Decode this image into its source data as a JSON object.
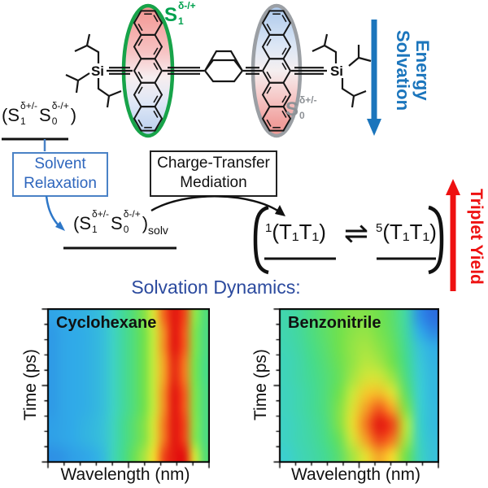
{
  "scheme": {
    "si_left": "Si",
    "si_right": "Si",
    "s1_ellipse": {
      "base": "S",
      "sub": "1",
      "sup": "δ-/+"
    },
    "s0_ellipse": {
      "base": "S",
      "sub": "0",
      "sup": "δ+/-"
    },
    "solvation_energy_line1": "Solvation",
    "solvation_energy_line2": "Energy",
    "state_ct": {
      "open": "(",
      "s1": "S",
      "s1_sub": "1",
      "s1_sup": "δ+/-",
      "s0": "S",
      "s0_sub": "0",
      "s0_sup": "δ-/+",
      "close": ")"
    },
    "state_ct_solv": {
      "open": "(",
      "s1": "S",
      "s1_sub": "1",
      "s1_sup": "δ+/-",
      "s0": "S",
      "s0_sub": "0",
      "s0_sup": "δ-/+",
      "close": ")",
      "subscript": "solv"
    },
    "solvent_relaxation_line1": "Solvent",
    "solvent_relaxation_line2": "Relaxation",
    "ct_mediation_line1": "Charge-Transfer",
    "ct_mediation_line2": "Mediation",
    "triplet_singlet": {
      "sup": "1",
      "body": "(T₁T₁)"
    },
    "triplet_quintet": {
      "sup": "5",
      "body": "(T₁T₁)"
    },
    "equilibrium": "⇌",
    "triplet_yield": "Triplet Yield",
    "solvation_dynamics": "Solvation Dynamics:"
  },
  "colors": {
    "blue_arrow": "#1b75bc",
    "solvent_box_blue": "#3a74c4",
    "dynamics_blue": "#2b4a9e",
    "red_arrow": "#ee1111",
    "s1_green": "#00a14e",
    "s0_gray": "#8d9196",
    "ellipse_green": "#17a349",
    "ellipse_gray": "#9b9fa4"
  },
  "chart_style": {
    "colormap": [
      [
        0.0,
        "#2a3fd4"
      ],
      [
        0.15,
        "#2b6fe0"
      ],
      [
        0.27,
        "#30aae8"
      ],
      [
        0.38,
        "#3cd0cf"
      ],
      [
        0.5,
        "#46db8c"
      ],
      [
        0.6,
        "#71e14e"
      ],
      [
        0.7,
        "#c8e83b"
      ],
      [
        0.78,
        "#f2d92e"
      ],
      [
        0.86,
        "#f59f26"
      ],
      [
        0.93,
        "#f25a1c"
      ],
      [
        1.0,
        "#e31810"
      ]
    ]
  },
  "chart_data": [
    {
      "type": "heatmap",
      "title": "Cyclohexane",
      "xlabel": "Wavelength (nm)",
      "ylabel": "Time (ps)",
      "axis_numeric_labels": false,
      "description": "Transient absorption map: static red spectral band, no dynamic shift",
      "values": [
        [
          0.26,
          0.27,
          0.28,
          0.29,
          0.31,
          0.34,
          0.41,
          0.48,
          0.54,
          0.62,
          0.74,
          0.92,
          1.0,
          0.95,
          0.64,
          0.53
        ],
        [
          0.24,
          0.26,
          0.27,
          0.28,
          0.3,
          0.33,
          0.4,
          0.47,
          0.53,
          0.6,
          0.7,
          0.88,
          1.0,
          0.93,
          0.62,
          0.52
        ],
        [
          0.24,
          0.26,
          0.27,
          0.28,
          0.3,
          0.33,
          0.4,
          0.47,
          0.53,
          0.6,
          0.7,
          0.88,
          1.0,
          0.93,
          0.62,
          0.52
        ],
        [
          0.24,
          0.26,
          0.27,
          0.28,
          0.3,
          0.33,
          0.4,
          0.47,
          0.53,
          0.6,
          0.7,
          0.86,
          0.98,
          0.9,
          0.61,
          0.51
        ],
        [
          0.24,
          0.26,
          0.27,
          0.28,
          0.3,
          0.33,
          0.4,
          0.47,
          0.53,
          0.6,
          0.7,
          0.86,
          0.98,
          0.9,
          0.61,
          0.51
        ],
        [
          0.24,
          0.26,
          0.27,
          0.28,
          0.3,
          0.33,
          0.4,
          0.47,
          0.53,
          0.6,
          0.7,
          0.88,
          1.0,
          0.93,
          0.62,
          0.52
        ],
        [
          0.24,
          0.26,
          0.27,
          0.28,
          0.3,
          0.33,
          0.4,
          0.47,
          0.53,
          0.6,
          0.7,
          0.88,
          1.0,
          0.93,
          0.62,
          0.52
        ],
        [
          0.25,
          0.26,
          0.27,
          0.29,
          0.31,
          0.34,
          0.41,
          0.49,
          0.55,
          0.62,
          0.73,
          0.9,
          1.0,
          0.95,
          0.63,
          0.52
        ],
        [
          0.25,
          0.26,
          0.27,
          0.29,
          0.31,
          0.34,
          0.41,
          0.49,
          0.55,
          0.62,
          0.73,
          0.9,
          1.0,
          0.95,
          0.63,
          0.52
        ],
        [
          0.22,
          0.23,
          0.25,
          0.26,
          0.28,
          0.32,
          0.42,
          0.5,
          0.58,
          0.66,
          0.78,
          0.95,
          1.0,
          1.0,
          0.72,
          0.54
        ]
      ]
    },
    {
      "type": "heatmap",
      "title": "Benzonitrile",
      "xlabel": "Wavelength (nm)",
      "ylabel": "Time (ps)",
      "axis_numeric_labels": false,
      "description": "Transient absorption map: red-shifting band growing in at later times (solvation dynamics)",
      "values": [
        [
          0.44,
          0.47,
          0.52,
          0.56,
          0.6,
          0.62,
          0.62,
          0.6,
          0.55,
          0.45,
          0.22,
          0.15
        ],
        [
          0.44,
          0.47,
          0.52,
          0.56,
          0.6,
          0.63,
          0.64,
          0.61,
          0.56,
          0.46,
          0.28,
          0.2
        ],
        [
          0.43,
          0.46,
          0.51,
          0.55,
          0.6,
          0.64,
          0.66,
          0.63,
          0.58,
          0.48,
          0.34,
          0.28
        ],
        [
          0.42,
          0.45,
          0.5,
          0.54,
          0.59,
          0.64,
          0.68,
          0.66,
          0.6,
          0.5,
          0.36,
          0.3
        ],
        [
          0.42,
          0.45,
          0.49,
          0.53,
          0.58,
          0.66,
          0.72,
          0.72,
          0.65,
          0.52,
          0.37,
          0.31
        ],
        [
          0.41,
          0.44,
          0.48,
          0.53,
          0.6,
          0.7,
          0.8,
          0.82,
          0.74,
          0.56,
          0.38,
          0.31
        ],
        [
          0.41,
          0.44,
          0.48,
          0.53,
          0.62,
          0.74,
          0.86,
          0.93,
          0.85,
          0.62,
          0.39,
          0.32
        ],
        [
          0.4,
          0.43,
          0.47,
          0.52,
          0.62,
          0.76,
          0.9,
          1.0,
          0.95,
          0.68,
          0.4,
          0.32
        ],
        [
          0.4,
          0.43,
          0.46,
          0.51,
          0.58,
          0.72,
          0.86,
          0.95,
          0.9,
          0.66,
          0.41,
          0.33
        ],
        [
          0.38,
          0.42,
          0.45,
          0.49,
          0.55,
          0.66,
          0.76,
          0.85,
          0.78,
          0.6,
          0.42,
          0.34
        ]
      ]
    }
  ]
}
